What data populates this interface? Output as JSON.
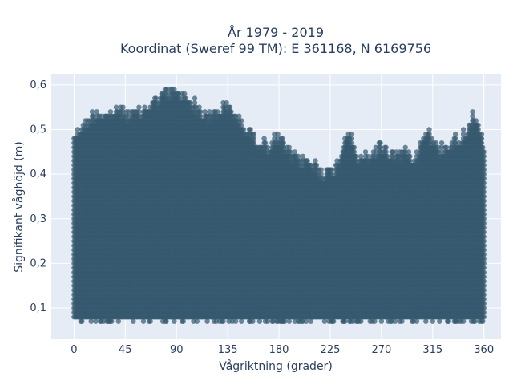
{
  "chart_data": {
    "type": "scatter",
    "title_lines": [
      "År 1979 - 2019",
      "Koordinat (Sweref 99 TM): E 361168, N 6169756"
    ],
    "xlabel": "Vågriktning (grader)",
    "ylabel": "Signifikant våghöjd (m)",
    "xlim": [
      -20,
      375
    ],
    "ylim": [
      0.03,
      0.625
    ],
    "xticks": [
      0,
      45,
      90,
      135,
      180,
      225,
      270,
      315,
      360
    ],
    "xtick_labels": [
      "0",
      "45",
      "90",
      "135",
      "180",
      "225",
      "270",
      "315",
      "360"
    ],
    "yticks": [
      0.1,
      0.2,
      0.3,
      0.4,
      0.5,
      0.6
    ],
    "ytick_labels": [
      "0,1",
      "0,2",
      "0,3",
      "0,4",
      "0,5",
      "0,6"
    ],
    "grid": true,
    "marker_color": "#34586e",
    "plot_bg": "#e5ecf6",
    "x_step": 1,
    "y_step": 0.01,
    "dense_region_note_min": 0.08,
    "envelope": [
      {
        "x": 0,
        "y": 0.51
      },
      {
        "x": 10,
        "y": 0.53
      },
      {
        "x": 20,
        "y": 0.56
      },
      {
        "x": 30,
        "y": 0.55
      },
      {
        "x": 40,
        "y": 0.56
      },
      {
        "x": 50,
        "y": 0.55
      },
      {
        "x": 60,
        "y": 0.56
      },
      {
        "x": 70,
        "y": 0.58
      },
      {
        "x": 80,
        "y": 0.6
      },
      {
        "x": 90,
        "y": 0.6
      },
      {
        "x": 100,
        "y": 0.59
      },
      {
        "x": 110,
        "y": 0.56
      },
      {
        "x": 120,
        "y": 0.55
      },
      {
        "x": 130,
        "y": 0.57
      },
      {
        "x": 140,
        "y": 0.56
      },
      {
        "x": 150,
        "y": 0.52
      },
      {
        "x": 160,
        "y": 0.5
      },
      {
        "x": 170,
        "y": 0.48
      },
      {
        "x": 180,
        "y": 0.5
      },
      {
        "x": 190,
        "y": 0.46
      },
      {
        "x": 200,
        "y": 0.45
      },
      {
        "x": 210,
        "y": 0.44
      },
      {
        "x": 220,
        "y": 0.42
      },
      {
        "x": 230,
        "y": 0.43
      },
      {
        "x": 240,
        "y": 0.52
      },
      {
        "x": 250,
        "y": 0.45
      },
      {
        "x": 260,
        "y": 0.46
      },
      {
        "x": 270,
        "y": 0.48
      },
      {
        "x": 280,
        "y": 0.46
      },
      {
        "x": 290,
        "y": 0.47
      },
      {
        "x": 300,
        "y": 0.46
      },
      {
        "x": 310,
        "y": 0.52
      },
      {
        "x": 320,
        "y": 0.47
      },
      {
        "x": 330,
        "y": 0.49
      },
      {
        "x": 340,
        "y": 0.5
      },
      {
        "x": 350,
        "y": 0.55
      },
      {
        "x": 360,
        "y": 0.48
      }
    ],
    "y_min": 0.07
  }
}
